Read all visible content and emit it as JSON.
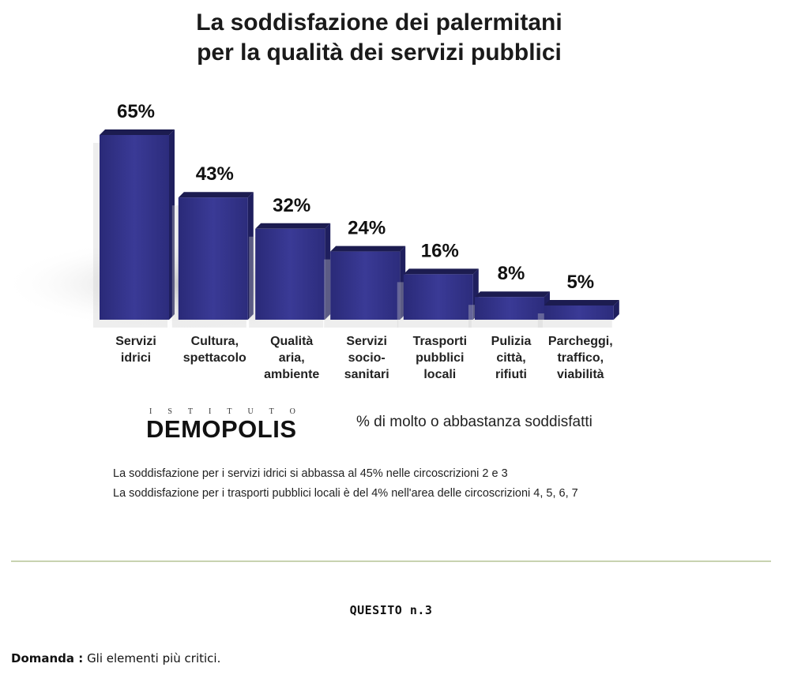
{
  "title_line1": "La soddisfazione dei palermitani",
  "title_line2": "per la qualità dei servizi pubblici",
  "chart_data": {
    "type": "bar",
    "title": "La soddisfazione dei palermitani per la qualità dei servizi pubblici",
    "categories": [
      [
        "Servizi",
        "idrici"
      ],
      [
        "Cultura,",
        "spettacolo"
      ],
      [
        "Qualità",
        "aria,",
        "ambiente"
      ],
      [
        "Servizi",
        "socio-",
        "sanitari"
      ],
      [
        "Trasporti",
        "pubblici",
        "locali"
      ],
      [
        "Pulizia",
        "città,",
        "rifiuti"
      ],
      [
        "Parcheggi,",
        "traffico,",
        "viabilità"
      ]
    ],
    "values": [
      65,
      43,
      32,
      24,
      16,
      8,
      5
    ],
    "value_labels": [
      "65%",
      "43%",
      "32%",
      "24%",
      "16%",
      "8%",
      "5%"
    ],
    "bar_color": "#34348a",
    "legend": "% di molto o abbastanza soddisfatti",
    "grid": false
  },
  "brand": {
    "top": "ISTITUTO",
    "name": "DEMOPOLIS"
  },
  "notes": [
    "La soddisfazione per i servizi idrici si abbassa al 45% nelle circoscrizioni 2 e 3",
    "La soddisfazione per i trasporti pubblici locali è del 4% nell'area delle circoscrizioni 4, 5, 6, 7"
  ],
  "question_title": "QUESITO n.3",
  "question_label": "Domanda :",
  "question_text": "Gli elementi più critici."
}
